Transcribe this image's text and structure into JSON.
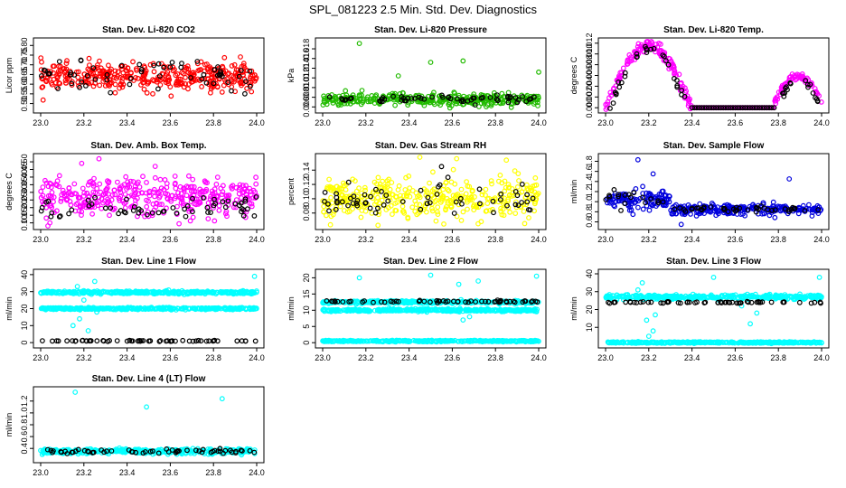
{
  "title": "SPL_081223  2.5 Min. Std. Dev. Diagnostics",
  "colors": {
    "red": "#ff0000",
    "green": "#22bb00",
    "magenta": "#ff00ff",
    "yellow": "#ffff00",
    "blue": "#0000dd",
    "cyan": "#00ffff",
    "black": "#000000"
  },
  "chart_data": [
    {
      "type": "scatter",
      "title": "Stan. Dev. Li-820 CO2",
      "ylabel": "Licor ppm",
      "xlim": [
        23.0,
        24.0
      ],
      "ylim": [
        0.47,
        0.82
      ],
      "xticks": [
        "23.0",
        "23.2",
        "23.4",
        "23.6",
        "23.8",
        "24.0"
      ],
      "yticks": [
        "0.50",
        "0.55",
        "0.60",
        "0.65",
        "0.70",
        "0.75",
        "0.80"
      ],
      "series": [
        {
          "color": "red",
          "bands": [
            {
              "x": [
                23.0,
                24.0
              ],
              "center": 0.64,
              "spread": 0.07
            }
          ]
        },
        {
          "color": "black",
          "bands": [
            {
              "x": [
                23.0,
                24.0
              ],
              "center": 0.64,
              "spread": 0.07
            }
          ]
        }
      ]
    },
    {
      "type": "scatter",
      "title": "Stan. Dev. Li-820 Pressure",
      "ylabel": "kPa",
      "xlim": [
        23.0,
        24.0
      ],
      "ylim": [
        0.0055,
        0.0195
      ],
      "xticks": [
        "23.0",
        "23.2",
        "23.4",
        "23.6",
        "23.8",
        "24.0"
      ],
      "yticks": [
        "0.006",
        "0.008",
        "0.010",
        "0.012",
        "0.014",
        "0.016",
        "0.018"
      ],
      "series": [
        {
          "color": "green",
          "bands": [
            {
              "x": [
                23.0,
                24.0
              ],
              "center": 0.0075,
              "spread": 0.0012
            }
          ],
          "outliers": [
            [
              23.17,
              0.0191
            ],
            [
              23.35,
              0.0124
            ],
            [
              23.5,
              0.0152
            ],
            [
              23.65,
              0.0155
            ],
            [
              24.0,
              0.0132
            ]
          ]
        },
        {
          "color": "black",
          "bands": [
            {
              "x": [
                23.0,
                24.0
              ],
              "center": 0.0077,
              "spread": 0.0009
            }
          ]
        }
      ]
    },
    {
      "type": "scatter",
      "title": "Stan. Dev. Li-820 Temp.",
      "ylabel": "degrees C",
      "xlim": [
        23.0,
        24.0
      ],
      "ylim": [
        -0.0003,
        0.0123
      ],
      "xticks": [
        "23.0",
        "23.2",
        "23.4",
        "23.6",
        "23.8",
        "24.0"
      ],
      "yticks": [
        "0.000",
        "0.002",
        "0.004",
        "0.006",
        "0.008",
        "0.010",
        "0.012"
      ],
      "series": [
        {
          "color": "magenta",
          "arch": {
            "x": [
              23.0,
              23.4
            ],
            "peak": 0.0115
          },
          "arch2": {
            "x": [
              23.78,
              24.0
            ],
            "peak": 0.0058
          },
          "flat": {
            "x": [
              23.4,
              23.78
            ],
            "y": 0.0
          }
        },
        {
          "color": "black",
          "arch": {
            "x": [
              23.02,
              23.38
            ],
            "peak": 0.0108
          },
          "arch2": {
            "x": [
              23.8,
              23.99
            ],
            "peak": 0.0055
          },
          "flat": {
            "x": [
              23.4,
              23.78
            ],
            "y": 0.0
          }
        }
      ]
    },
    {
      "type": "scatter",
      "title": "Stan. Dev. Amb. Box Temp.",
      "ylabel": "degrees C",
      "xlim": [
        23.0,
        24.0
      ],
      "ylim": [
        0.08,
        0.53
      ],
      "xticks": [
        "23.0",
        "23.2",
        "23.4",
        "23.6",
        "23.8",
        "24.0"
      ],
      "yticks": [
        "0.10",
        "0.15",
        "0.20",
        "0.25",
        "0.30",
        "0.35",
        "0.40",
        "0.45",
        "0.50"
      ],
      "series": [
        {
          "color": "magenta",
          "bands": [
            {
              "x": [
                23.0,
                24.0
              ],
              "center": 0.27,
              "spread": 0.12
            }
          ],
          "outliers": [
            [
              23.19,
              0.49
            ],
            [
              23.27,
              0.52
            ],
            [
              23.53,
              0.47
            ]
          ]
        },
        {
          "color": "black",
          "bands": [
            {
              "x": [
                23.0,
                24.0
              ],
              "center": 0.19,
              "spread": 0.08
            }
          ]
        }
      ]
    },
    {
      "type": "scatter",
      "title": "Stan. Dev. Gas Stream RH",
      "ylabel": "percent",
      "xlim": [
        23.0,
        24.0
      ],
      "ylim": [
        0.062,
        0.158
      ],
      "xticks": [
        "23.0",
        "23.2",
        "23.4",
        "23.6",
        "23.8",
        "24.0"
      ],
      "yticks": [
        "0.08",
        "0.10",
        "0.12",
        "0.14"
      ],
      "series": [
        {
          "color": "yellow",
          "bands": [
            {
              "x": [
                23.0,
                24.0
              ],
              "center": 0.1,
              "spread": 0.03
            }
          ],
          "outliers": [
            [
              23.45,
              0.158
            ],
            [
              23.62,
              0.156
            ],
            [
              23.85,
              0.154
            ]
          ]
        },
        {
          "color": "black",
          "bands": [
            {
              "x": [
                23.0,
                24.0
              ],
              "center": 0.095,
              "spread": 0.02
            }
          ],
          "outliers": [
            [
              23.55,
              0.145
            ],
            [
              23.58,
              0.13
            ],
            [
              23.12,
              0.123
            ]
          ]
        }
      ]
    },
    {
      "type": "scatter",
      "title": "Stan. Dev. Sample Flow",
      "ylabel": "ml/min",
      "xlim": [
        23.0,
        24.0
      ],
      "ylim": [
        0.52,
        1.88
      ],
      "xticks": [
        "23.0",
        "23.2",
        "23.4",
        "23.6",
        "23.8",
        "24.0"
      ],
      "yticks": [
        "0.6",
        "0.8",
        "1.0",
        "1.2",
        "1.4",
        "1.6",
        "1.8"
      ],
      "series": [
        {
          "color": "blue",
          "bands": [
            {
              "x": [
                23.0,
                23.3
              ],
              "center": 1.02,
              "spread": 0.18
            },
            {
              "x": [
                23.3,
                24.0
              ],
              "center": 0.85,
              "spread": 0.1
            }
          ],
          "outliers": [
            [
              23.15,
              1.83
            ],
            [
              23.22,
              1.55
            ],
            [
              23.85,
              1.45
            ],
            [
              23.35,
              0.55
            ]
          ]
        },
        {
          "color": "black",
          "bands": [
            {
              "x": [
                23.0,
                23.3
              ],
              "center": 1.08,
              "spread": 0.15
            },
            {
              "x": [
                23.3,
                24.0
              ],
              "center": 0.86,
              "spread": 0.07
            }
          ]
        }
      ]
    },
    {
      "type": "scatter",
      "title": "Stan. Dev. Line 1 Flow",
      "ylabel": "ml/min",
      "xlim": [
        23.0,
        24.0
      ],
      "ylim": [
        -1,
        41
      ],
      "xticks": [
        "23.0",
        "23.2",
        "23.4",
        "23.6",
        "23.8",
        "24.0"
      ],
      "yticks": [
        "0",
        "10",
        "20",
        "30",
        "40"
      ],
      "series": [
        {
          "color": "cyan",
          "bands": [
            {
              "x": [
                23.0,
                24.0
              ],
              "center": 29.5,
              "spread": 0.8
            },
            {
              "x": [
                23.0,
                24.0
              ],
              "center": 20.0,
              "spread": 0.6
            }
          ],
          "outliers": [
            [
              23.15,
              10
            ],
            [
              23.18,
              14
            ],
            [
              23.2,
              25
            ],
            [
              23.22,
              7
            ],
            [
              23.17,
              33
            ],
            [
              23.25,
              36
            ],
            [
              23.26,
              18
            ],
            [
              23.99,
              39
            ]
          ]
        },
        {
          "color": "black",
          "bands": [
            {
              "x": [
                23.0,
                24.0
              ],
              "center": 1.0,
              "spread": 0.3
            }
          ]
        }
      ]
    },
    {
      "type": "scatter",
      "title": "Stan. Dev. Line 2 Flow",
      "ylabel": "ml/min",
      "xlim": [
        23.0,
        24.0
      ],
      "ylim": [
        -0.5,
        21.5
      ],
      "xticks": [
        "23.0",
        "23.2",
        "23.4",
        "23.6",
        "23.8",
        "24.0"
      ],
      "yticks": [
        "0",
        "5",
        "10",
        "15",
        "20"
      ],
      "series": [
        {
          "color": "cyan",
          "bands": [
            {
              "x": [
                23.0,
                24.0
              ],
              "center": 12.5,
              "spread": 0.4
            },
            {
              "x": [
                23.0,
                24.0
              ],
              "center": 10.0,
              "spread": 0.4
            },
            {
              "x": [
                23.0,
                24.0
              ],
              "center": 0.5,
              "spread": 0.2
            }
          ],
          "outliers": [
            [
              23.17,
              20
            ],
            [
              23.5,
              20.8
            ],
            [
              23.65,
              7
            ],
            [
              23.68,
              8
            ],
            [
              23.72,
              19
            ],
            [
              23.99,
              20.5
            ],
            [
              23.63,
              18
            ]
          ]
        },
        {
          "color": "black",
          "bands": [
            {
              "x": [
                23.0,
                24.0
              ],
              "center": 12.7,
              "spread": 0.3
            }
          ]
        }
      ]
    },
    {
      "type": "scatter",
      "title": "Stan. Dev. Line 3 Flow",
      "ylabel": "ml/min",
      "xlim": [
        23.0,
        24.0
      ],
      "ylim": [
        0.5,
        40.5
      ],
      "xticks": [
        "23.0",
        "23.2",
        "23.4",
        "23.6",
        "23.8",
        "24.0"
      ],
      "yticks": [
        "10",
        "20",
        "30",
        "40"
      ],
      "series": [
        {
          "color": "cyan",
          "bands": [
            {
              "x": [
                23.0,
                24.0
              ],
              "center": 27.0,
              "spread": 1.2
            },
            {
              "x": [
                23.0,
                24.0
              ],
              "center": 1.5,
              "spread": 0.4
            }
          ],
          "outliers": [
            [
              23.15,
              31
            ],
            [
              23.17,
              35
            ],
            [
              23.2,
              5
            ],
            [
              23.22,
              8
            ],
            [
              23.19,
              14
            ],
            [
              23.23,
              17
            ],
            [
              23.5,
              38
            ],
            [
              23.63,
              22
            ],
            [
              23.67,
              12
            ],
            [
              23.7,
              18
            ],
            [
              23.99,
              38
            ]
          ]
        },
        {
          "color": "black",
          "bands": [
            {
              "x": [
                23.0,
                24.0
              ],
              "center": 24.0,
              "spread": 0.5
            }
          ]
        }
      ]
    },
    {
      "type": "scatter",
      "title": "Stan. Dev. Line 4 (LT) Flow",
      "ylabel": "ml/min",
      "xlim": [
        23.0,
        24.0
      ],
      "ylim": [
        0.22,
        1.38
      ],
      "xticks": [
        "23.0",
        "23.2",
        "23.4",
        "23.6",
        "23.8",
        "24.0"
      ],
      "yticks": [
        "0.4",
        "0.6",
        "0.8",
        "1.0",
        "1.2"
      ],
      "series": [
        {
          "color": "cyan",
          "bands": [
            {
              "x": [
                23.0,
                24.0
              ],
              "center": 0.35,
              "spread": 0.04
            }
          ],
          "outliers": [
            [
              23.16,
              1.35
            ],
            [
              23.49,
              1.1
            ],
            [
              23.84,
              1.24
            ]
          ]
        },
        {
          "color": "black",
          "bands": [
            {
              "x": [
                23.0,
                24.0
              ],
              "center": 0.35,
              "spread": 0.04
            }
          ]
        }
      ]
    }
  ]
}
